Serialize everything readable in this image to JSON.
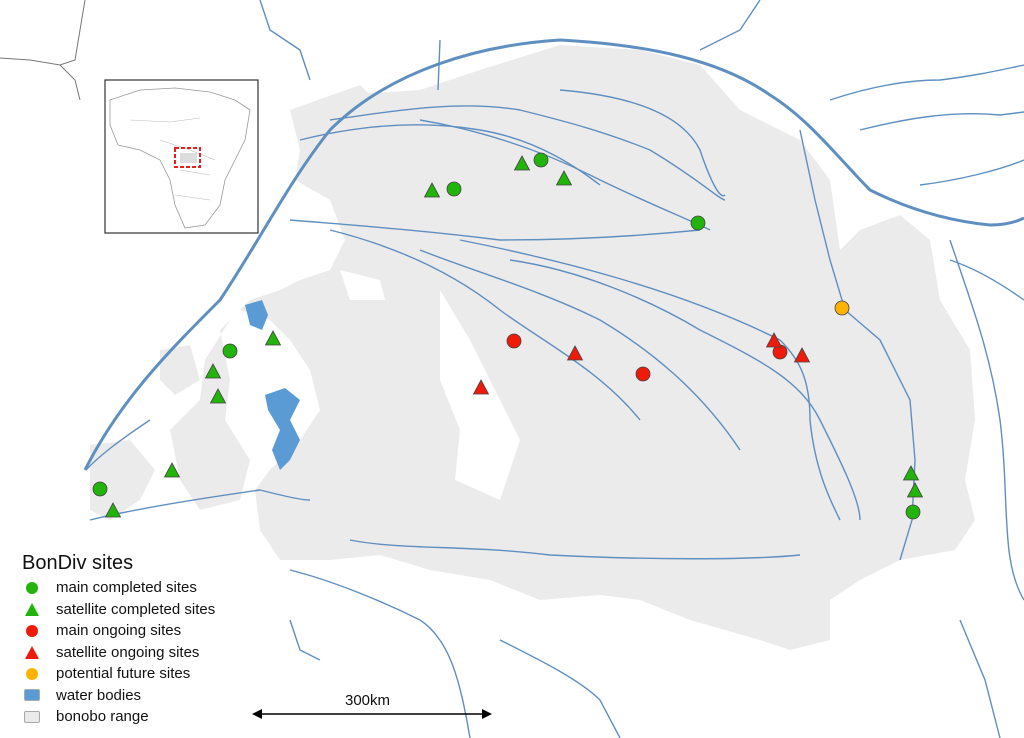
{
  "legend": {
    "title": "BonDiv sites",
    "items": [
      {
        "label": "main completed sites",
        "symbol": "circle",
        "color": "#22b40a"
      },
      {
        "label": "satellite completed sites",
        "symbol": "triangle",
        "color": "#22b40a"
      },
      {
        "label": "main ongoing sites",
        "symbol": "circle",
        "color": "#f01a0a"
      },
      {
        "label": "satellite ongoing sites",
        "symbol": "triangle",
        "color": "#f01a0a"
      },
      {
        "label": "potential future sites",
        "symbol": "circle",
        "color": "#ffb300"
      },
      {
        "label": "water bodies",
        "symbol": "rect",
        "color": "#5b9bd5"
      },
      {
        "label": "bonobo range",
        "symbol": "rect",
        "color": "#eaeaea"
      }
    ]
  },
  "scale_bar": {
    "label": "300km"
  },
  "colors": {
    "river": "#5f8fc0",
    "range": "#ebebeb",
    "inset_box": "#e8201c"
  },
  "inset": {
    "description_icon": "africa-locator-inset"
  }
}
